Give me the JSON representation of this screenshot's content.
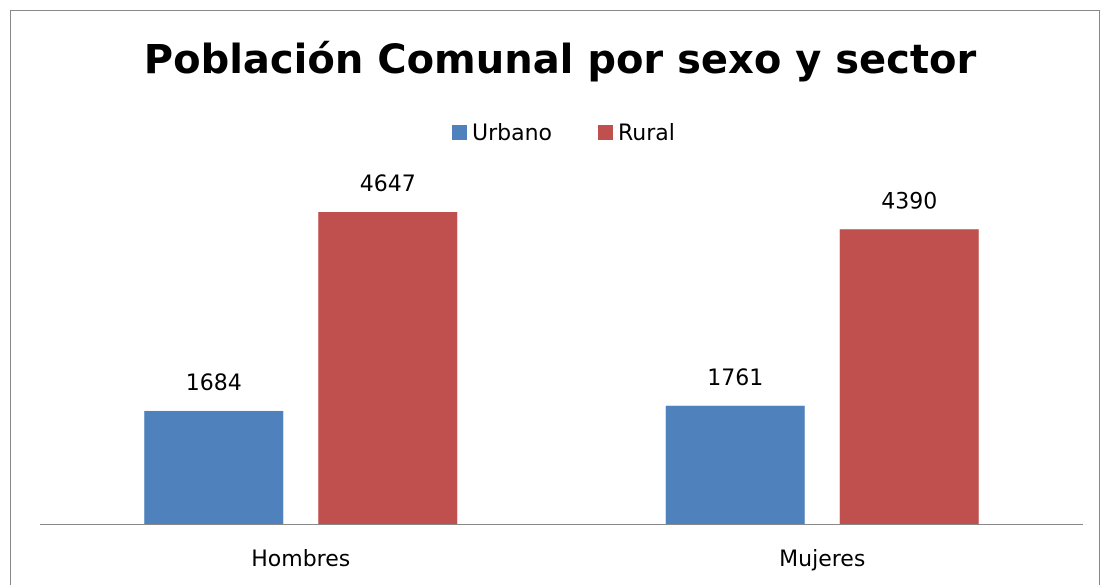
{
  "chart_data": {
    "type": "bar",
    "title": "Población Comunal por sexo y sector",
    "categories": [
      "Hombres",
      "Mujeres"
    ],
    "series": [
      {
        "name": "Urbano",
        "color": "#4f81bd",
        "values": [
          1684,
          1761
        ]
      },
      {
        "name": "Rural",
        "color": "#c0504d",
        "values": [
          4647,
          4390
        ]
      }
    ],
    "ylim": [
      0,
      5000
    ],
    "legend": "top"
  }
}
